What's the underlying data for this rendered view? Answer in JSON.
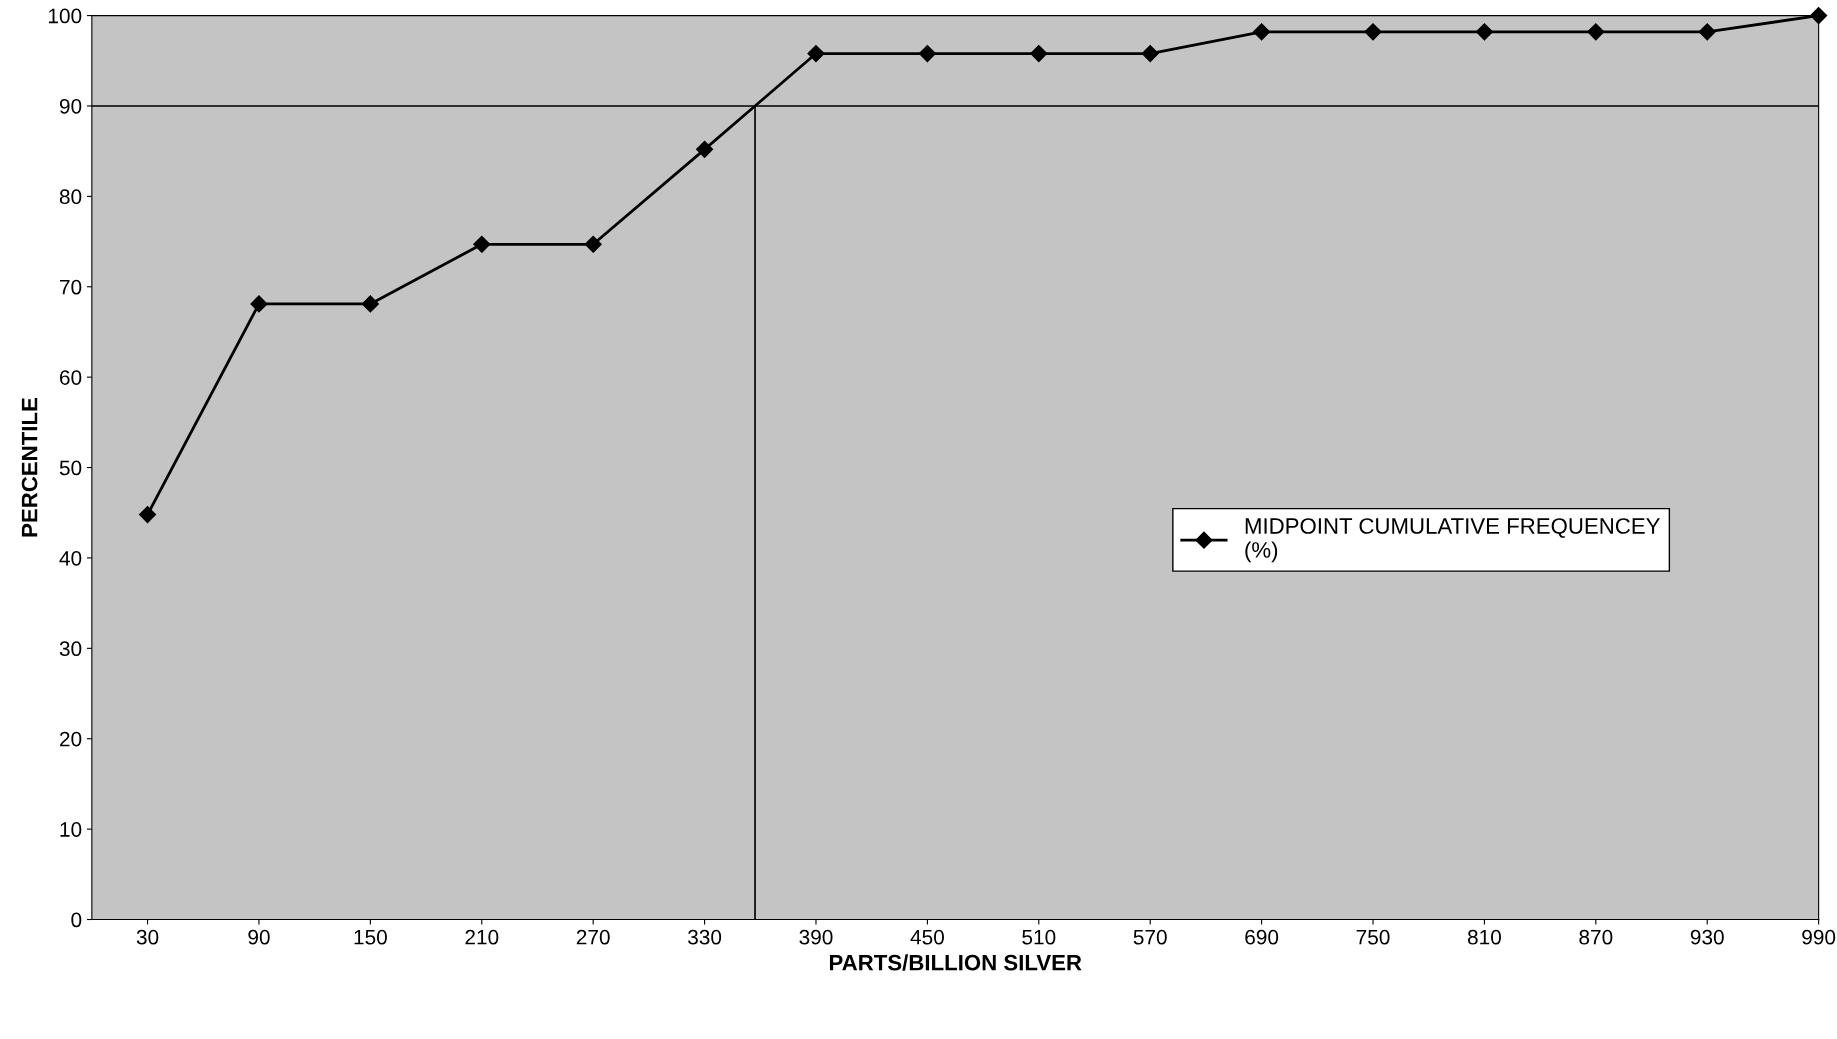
{
  "chart_data": {
    "type": "line",
    "xlabel": "PARTS/BILLION SILVER",
    "ylabel": "PERCENTILE",
    "categories": [
      "30",
      "90",
      "150",
      "210",
      "270",
      "330",
      "390",
      "450",
      "510",
      "570",
      "690",
      "750",
      "810",
      "870",
      "930",
      "990"
    ],
    "series": [
      {
        "name": "MIDPOINT CUMULATIVE FREQUENCEY\n(%)",
        "color": "#000000",
        "values": [
          44.8,
          68.1,
          68.1,
          74.7,
          74.7,
          85.2,
          95.8,
          95.8,
          95.8,
          95.8,
          98.2,
          98.2,
          98.2,
          98.2,
          98.2,
          100
        ]
      }
    ],
    "ylim": [
      0,
      100
    ],
    "yticks": [
      0,
      10,
      20,
      30,
      40,
      50,
      60,
      70,
      80,
      90,
      100
    ],
    "ref_lines": [
      {
        "axis": "y",
        "value": 90,
        "color": "#000000"
      }
    ],
    "marker": "diamond",
    "line_style": "solid",
    "grid": false,
    "legend": "right"
  }
}
